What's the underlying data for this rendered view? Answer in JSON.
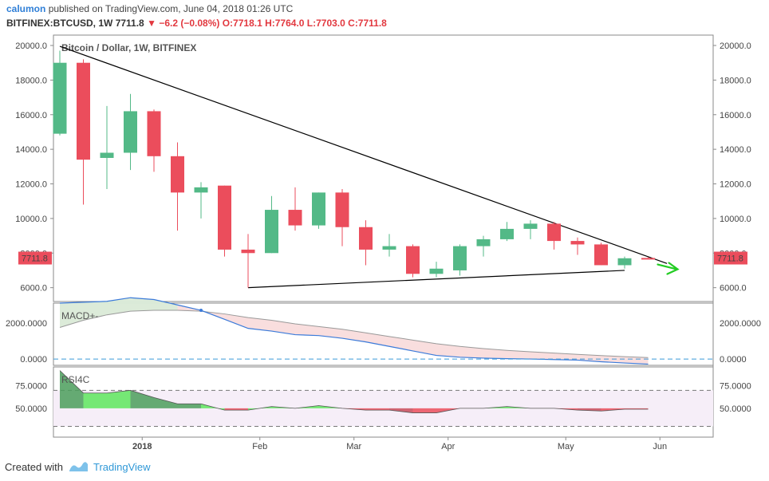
{
  "header": {
    "author": "calumon",
    "published_text": "published on TradingView.com, June 04, 2018 01:26 UTC",
    "symbol": "BITFINEX:BTCUSD, 1W",
    "last": "7711.8",
    "change_arrow": "▼",
    "change": "−6.2 (−0.08%)",
    "ohlc": "O:7718.1 H:7764.0 L:7703.0 C:7711.8"
  },
  "footer": {
    "created_with": "Created with",
    "brand": "TradingView"
  },
  "chart_data": {
    "type": "candlestick",
    "title": "Bitcoin / Dollar, 1W, BITFINEX",
    "price_tag": "7711.8",
    "y_ticks": [
      "20000.0",
      "18000.0",
      "16000.0",
      "14000.0",
      "12000.0",
      "10000.0",
      "8000.0",
      "6000.0"
    ],
    "y_ticks_left": [
      "20000.0",
      "18000.0",
      "16000.0",
      "14000.0",
      "12000.0",
      "10000.0",
      "8000.0",
      "6000.0"
    ],
    "y_tick_values": [
      20000,
      18000,
      16000,
      14000,
      12000,
      10000,
      8000,
      6000
    ],
    "ylim": [
      5200,
      20600
    ],
    "x_labels": [
      {
        "label": "2018",
        "week": 3.5
      },
      {
        "label": "Feb",
        "week": 8.5
      },
      {
        "label": "Mar",
        "week": 12.5
      },
      {
        "label": "Apr",
        "week": 16.5
      },
      {
        "label": "May",
        "week": 21.5
      },
      {
        "label": "Jun",
        "week": 25.5
      }
    ],
    "candles": [
      {
        "o": 14900,
        "h": 19700,
        "l": 14800,
        "c": 19000
      },
      {
        "o": 19000,
        "h": 19200,
        "l": 10800,
        "c": 13400
      },
      {
        "o": 13500,
        "h": 16500,
        "l": 11700,
        "c": 13800
      },
      {
        "o": 13800,
        "h": 17200,
        "l": 12800,
        "c": 16200
      },
      {
        "o": 16200,
        "h": 16300,
        "l": 12700,
        "c": 13600
      },
      {
        "o": 13600,
        "h": 14400,
        "l": 9300,
        "c": 11500
      },
      {
        "o": 11500,
        "h": 12100,
        "l": 10000,
        "c": 11800
      },
      {
        "o": 11900,
        "h": 11900,
        "l": 7800,
        "c": 8200
      },
      {
        "o": 8200,
        "h": 9100,
        "l": 6000,
        "c": 8000
      },
      {
        "o": 8000,
        "h": 11300,
        "l": 8000,
        "c": 10500
      },
      {
        "o": 10500,
        "h": 11800,
        "l": 9300,
        "c": 9600
      },
      {
        "o": 9600,
        "h": 11500,
        "l": 9400,
        "c": 11500
      },
      {
        "o": 11500,
        "h": 11700,
        "l": 8400,
        "c": 9500
      },
      {
        "o": 9500,
        "h": 9900,
        "l": 7300,
        "c": 8200
      },
      {
        "o": 8200,
        "h": 9100,
        "l": 7800,
        "c": 8400
      },
      {
        "o": 8400,
        "h": 8500,
        "l": 6600,
        "c": 6800
      },
      {
        "o": 6800,
        "h": 7500,
        "l": 6600,
        "c": 7100
      },
      {
        "o": 7000,
        "h": 8500,
        "l": 6700,
        "c": 8400
      },
      {
        "o": 8400,
        "h": 9000,
        "l": 7800,
        "c": 8800
      },
      {
        "o": 8800,
        "h": 9800,
        "l": 8700,
        "c": 9400
      },
      {
        "o": 9400,
        "h": 9900,
        "l": 8800,
        "c": 9700
      },
      {
        "o": 9700,
        "h": 9800,
        "l": 8200,
        "c": 8700
      },
      {
        "o": 8700,
        "h": 8900,
        "l": 7900,
        "c": 8500
      },
      {
        "o": 8500,
        "h": 8600,
        "l": 7300,
        "c": 7300
      },
      {
        "o": 7300,
        "h": 7800,
        "l": 7100,
        "c": 7700
      },
      {
        "o": 7718.1,
        "h": 7764,
        "l": 7703,
        "c": 7711.8
      }
    ],
    "trendlines": [
      {
        "week1": 0,
        "price1": 19950,
        "week2": 25.8,
        "price2": 7400
      },
      {
        "week1": 8,
        "price1": 6000,
        "week2": 24,
        "price2": 7000
      }
    ],
    "colors": {
      "up": "#53b987",
      "down": "#eb4d5c",
      "wick": "#888888",
      "trend": "#000000",
      "arrow": "#22cc22"
    },
    "macd": {
      "label": "MACD+-",
      "ticks": [
        "2000.0000",
        "0.0000"
      ],
      "tick_values": [
        2000,
        0
      ],
      "ylim": [
        -350,
        3100
      ],
      "macd": [
        3100,
        3150,
        3200,
        3400,
        3300,
        3000,
        2700,
        2200,
        1700,
        1550,
        1350,
        1300,
        1150,
        950,
        700,
        450,
        200,
        100,
        50,
        20,
        0,
        -30,
        -60,
        -150,
        -220,
        -280
      ],
      "signal": [
        1750,
        2150,
        2450,
        2650,
        2700,
        2700,
        2650,
        2500,
        2300,
        2150,
        1950,
        1800,
        1650,
        1450,
        1250,
        1050,
        850,
        700,
        580,
        480,
        400,
        330,
        260,
        190,
        130,
        80
      ]
    },
    "rsi": {
      "label": "RSI4C",
      "ticks": [
        "75.0000",
        "50.0000"
      ],
      "tick_values": [
        75,
        50
      ],
      "ylim": [
        18,
        96
      ],
      "upper": 70,
      "lower": 30,
      "values": [
        92,
        67,
        67,
        70,
        62,
        55,
        55,
        48,
        48,
        52,
        50,
        53,
        50,
        48,
        48,
        45,
        45,
        50,
        50,
        52,
        50,
        50,
        48,
        47,
        49,
        49
      ]
    }
  }
}
